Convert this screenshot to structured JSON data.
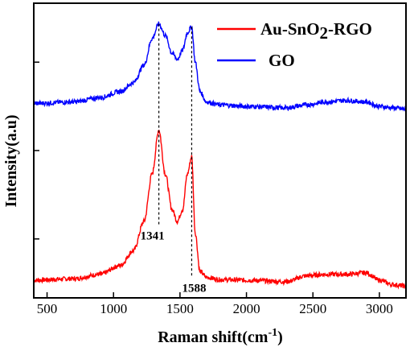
{
  "chart_data": {
    "type": "line",
    "title": "",
    "xlabel": "Raman shift(cm",
    "xlabel_sup": "-1",
    "xlabel_close": ")",
    "ylabel": "Intensity(a.u)",
    "xlim": [
      400,
      3200
    ],
    "ylim": [
      0,
      1
    ],
    "x_ticks": [
      500,
      1000,
      1500,
      2000,
      2500,
      3000
    ],
    "y_ticks_labeled": false,
    "grid": false,
    "legend_position": "top-right",
    "series": [
      {
        "name_parts": [
          "Au-SnO",
          "2",
          "-RGO"
        ],
        "color": "#ff0000",
        "x": [
          400,
          700,
          900,
          1050,
          1150,
          1230,
          1290,
          1341,
          1390,
          1440,
          1480,
          1520,
          1555,
          1588,
          1615,
          1650,
          1700,
          1800,
          2000,
          2300,
          2450,
          2600,
          2750,
          2900,
          3000,
          3100,
          3200
        ],
        "y": [
          0.06,
          0.065,
          0.08,
          0.11,
          0.16,
          0.26,
          0.42,
          0.57,
          0.42,
          0.3,
          0.26,
          0.3,
          0.42,
          0.48,
          0.22,
          0.09,
          0.07,
          0.062,
          0.06,
          0.055,
          0.075,
          0.08,
          0.08,
          0.085,
          0.06,
          0.045,
          0.04
        ]
      },
      {
        "name": "GO",
        "color": "#0000ff",
        "x": [
          400,
          700,
          900,
          1050,
          1150,
          1230,
          1290,
          1341,
          1390,
          1440,
          1480,
          1520,
          1555,
          1588,
          1615,
          1650,
          1700,
          1800,
          2000,
          2300,
          2450,
          2600,
          2750,
          2900,
          3000,
          3100,
          3200
        ],
        "y": [
          0.66,
          0.665,
          0.68,
          0.7,
          0.73,
          0.79,
          0.88,
          0.93,
          0.89,
          0.83,
          0.81,
          0.84,
          0.9,
          0.92,
          0.8,
          0.7,
          0.665,
          0.655,
          0.65,
          0.645,
          0.655,
          0.665,
          0.67,
          0.665,
          0.65,
          0.645,
          0.64
        ]
      }
    ],
    "annotations": [
      {
        "x": 1341,
        "label": "1341"
      },
      {
        "x": 1588,
        "label": "1588"
      }
    ]
  }
}
